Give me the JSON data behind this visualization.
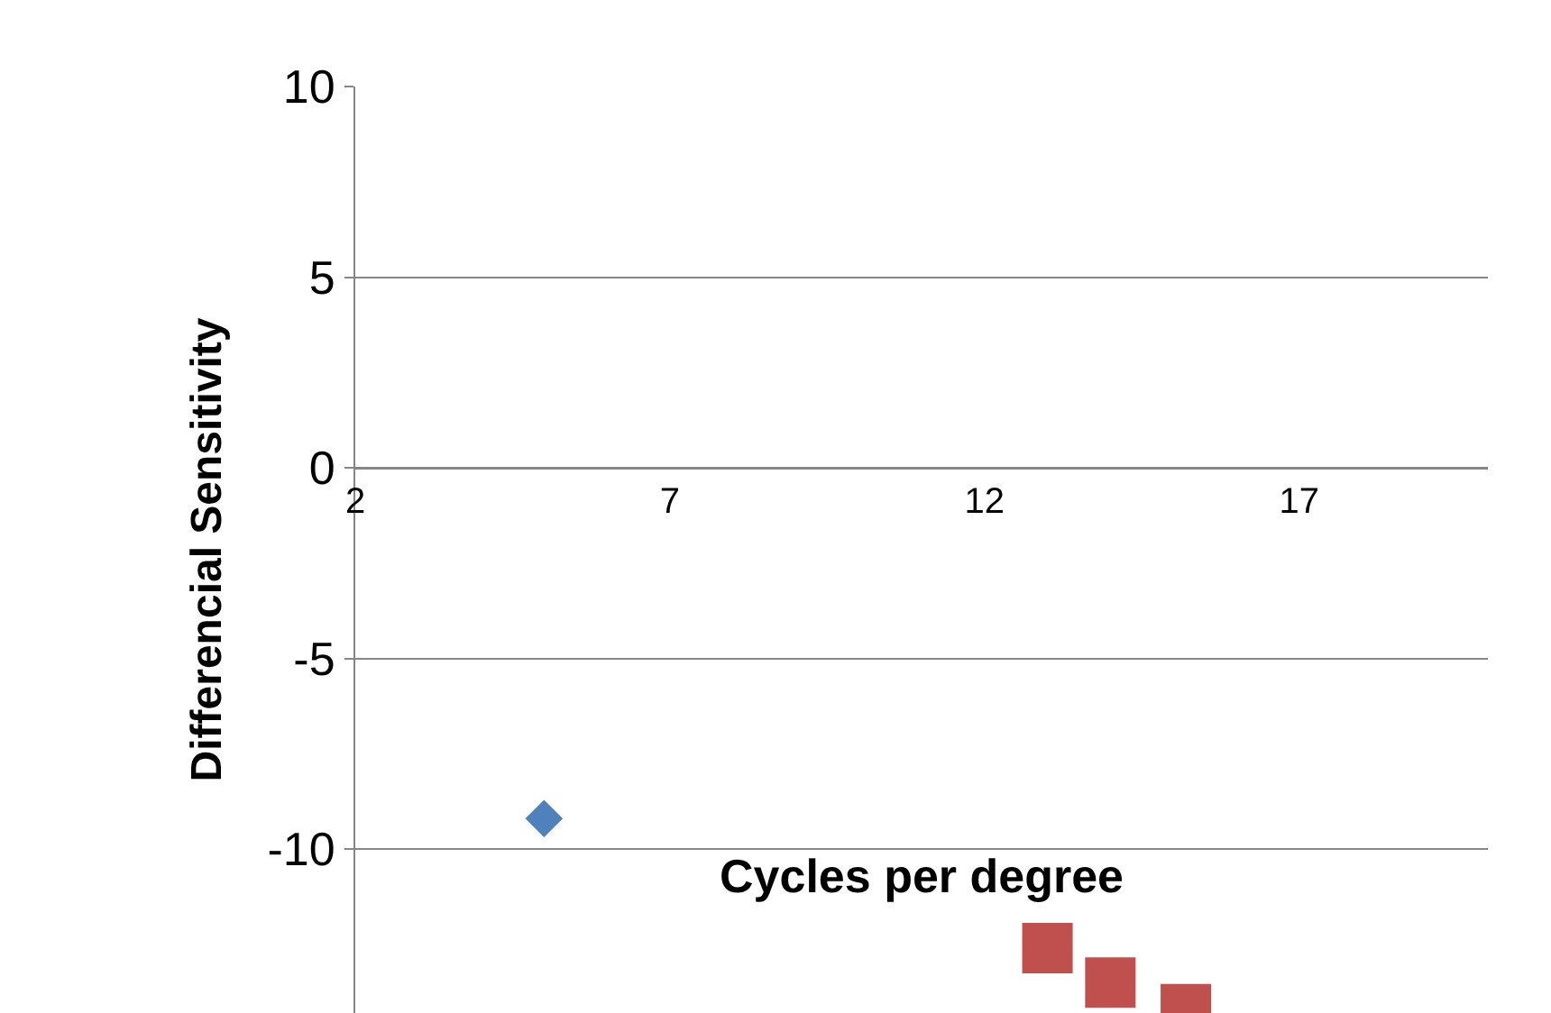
{
  "chart_data": {
    "type": "scatter",
    "xlabel": "Cycles per degree",
    "ylabel": "Differencial Sensitivity",
    "xlim": [
      2,
      20
    ],
    "xticks": [
      2,
      7,
      12,
      17
    ],
    "ylim": [
      -14.3,
      10
    ],
    "yticks": [
      10,
      5,
      0,
      -5,
      -10
    ],
    "grid": "y",
    "legend": false,
    "series": [
      {
        "color": "#4f81bd",
        "marker": "diamond",
        "x": [
          5.0
        ],
        "values": [
          -9.2
        ]
      },
      {
        "color": "#c0504d",
        "marker": "square",
        "x": [
          13.0,
          14.0,
          15.2
        ],
        "values": [
          -12.6,
          -13.5,
          -14.2
        ]
      }
    ]
  }
}
